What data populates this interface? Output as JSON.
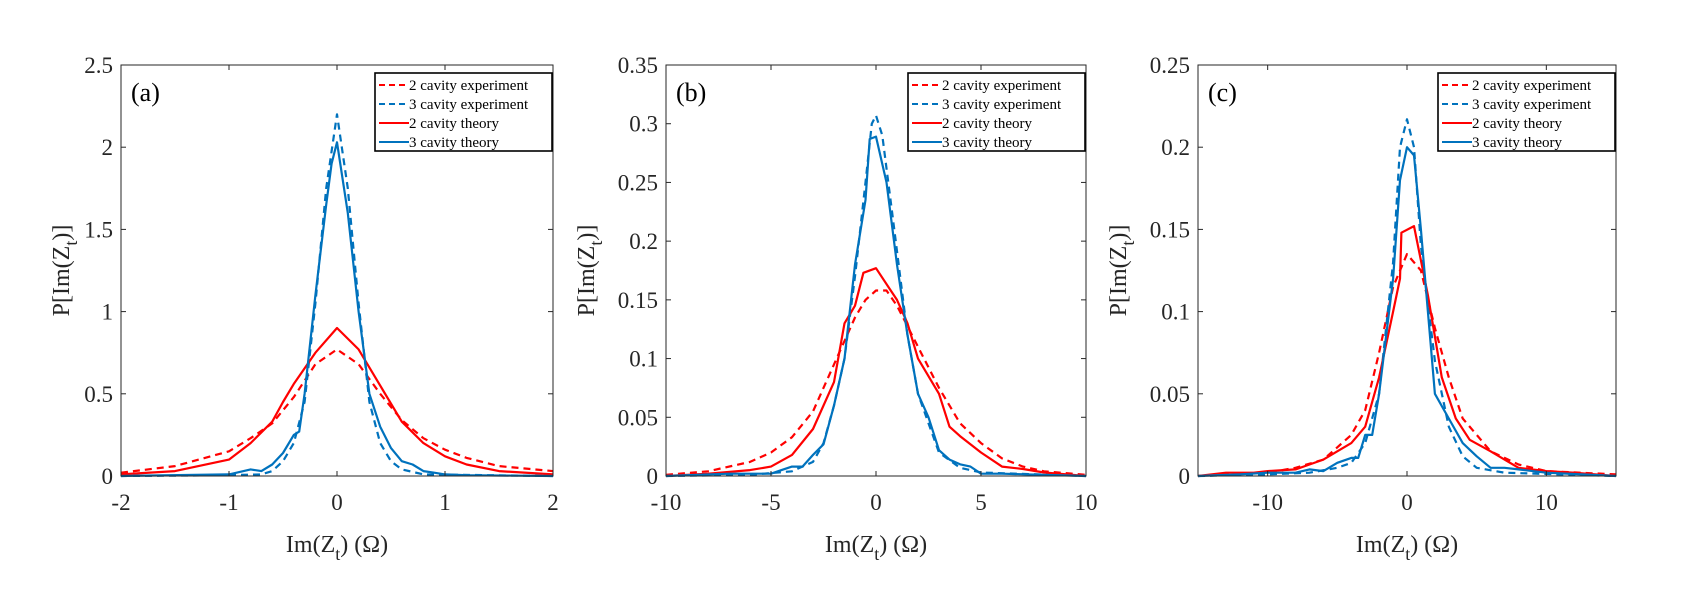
{
  "chart_data": [
    {
      "type": "line",
      "panel_label": "(a)",
      "xlabel": {
        "main": "Im(Z",
        "sub": "t",
        "tail": ") (Ω)"
      },
      "ylabel": {
        "main": "P[Im(Z",
        "sub": "t",
        "tail": ")]"
      },
      "xlim": [
        -2,
        2
      ],
      "ylim": [
        0,
        2.5
      ],
      "xticks": [
        -2,
        -1,
        0,
        1,
        2
      ],
      "yticks": [
        0,
        0.5,
        1,
        1.5,
        2,
        2.5
      ],
      "legend_position": "top-right",
      "series": [
        {
          "name": "2 cavity experiment",
          "color": "#ff0000",
          "style": "dashed",
          "x": [
            -2,
            -1.5,
            -1,
            -0.8,
            -0.6,
            -0.4,
            -0.2,
            0,
            0.2,
            0.4,
            0.6,
            0.8,
            1,
            1.2,
            1.5,
            2
          ],
          "y": [
            0.02,
            0.06,
            0.15,
            0.23,
            0.32,
            0.48,
            0.68,
            0.77,
            0.68,
            0.5,
            0.34,
            0.23,
            0.16,
            0.11,
            0.06,
            0.03
          ]
        },
        {
          "name": "3 cavity experiment",
          "color": "#0072bd",
          "style": "dashed",
          "x": [
            -2,
            -1,
            -0.7,
            -0.6,
            -0.5,
            -0.4,
            -0.3,
            -0.2,
            -0.1,
            0,
            0.1,
            0.2,
            0.3,
            0.4,
            0.5,
            0.6,
            0.8,
            2
          ],
          "y": [
            0,
            0.005,
            0.01,
            0.03,
            0.09,
            0.2,
            0.45,
            1.05,
            1.75,
            2.2,
            1.75,
            1.05,
            0.45,
            0.2,
            0.09,
            0.04,
            0.01,
            0
          ]
        },
        {
          "name": "2 cavity theory",
          "color": "#ff0000",
          "style": "solid",
          "x": [
            -2,
            -1.5,
            -1,
            -0.8,
            -0.6,
            -0.5,
            -0.4,
            -0.2,
            0,
            0.2,
            0.4,
            0.6,
            0.8,
            1,
            1.2,
            1.5,
            2
          ],
          "y": [
            0.01,
            0.03,
            0.1,
            0.2,
            0.33,
            0.45,
            0.56,
            0.75,
            0.9,
            0.77,
            0.55,
            0.33,
            0.2,
            0.12,
            0.07,
            0.03,
            0.01
          ]
        },
        {
          "name": "3 cavity theory",
          "color": "#0072bd",
          "style": "solid",
          "x": [
            -2,
            -1,
            -0.8,
            -0.7,
            -0.6,
            -0.5,
            -0.4,
            -0.35,
            -0.3,
            -0.2,
            -0.1,
            -0.05,
            0,
            0.1,
            0.2,
            0.3,
            0.4,
            0.5,
            0.6,
            0.7,
            0.8,
            0.9,
            1,
            1.2,
            2
          ],
          "y": [
            0,
            0.01,
            0.04,
            0.03,
            0.07,
            0.14,
            0.25,
            0.27,
            0.5,
            1.1,
            1.65,
            1.9,
            2.03,
            1.6,
            1.0,
            0.5,
            0.3,
            0.17,
            0.09,
            0.07,
            0.03,
            0.02,
            0.01,
            0.005,
            0
          ]
        }
      ]
    },
    {
      "type": "line",
      "panel_label": "(b)",
      "xlabel": {
        "main": "Im(Z",
        "sub": "t",
        "tail": ") (Ω)"
      },
      "ylabel": {
        "main": "P[Im(Z",
        "sub": "t",
        "tail": ")]"
      },
      "xlim": [
        -10,
        10
      ],
      "ylim": [
        0,
        0.35
      ],
      "xticks": [
        -10,
        -5,
        0,
        5,
        10
      ],
      "yticks": [
        0,
        0.05,
        0.1,
        0.15,
        0.2,
        0.25,
        0.3,
        0.35
      ],
      "legend_position": "top-right",
      "series": [
        {
          "name": "2 cavity experiment",
          "color": "#ff0000",
          "style": "dashed",
          "x": [
            -10,
            -8,
            -6,
            -5,
            -4,
            -3,
            -2,
            -1,
            -0.5,
            0,
            0.5,
            1,
            2,
            3,
            4,
            5,
            6,
            7,
            8,
            10
          ],
          "y": [
            0.001,
            0.004,
            0.012,
            0.02,
            0.033,
            0.055,
            0.095,
            0.135,
            0.15,
            0.158,
            0.158,
            0.145,
            0.11,
            0.075,
            0.045,
            0.028,
            0.015,
            0.008,
            0.004,
            0.001
          ]
        },
        {
          "name": "3 cavity experiment",
          "color": "#0072bd",
          "style": "dashed",
          "x": [
            -10,
            -6,
            -4,
            -3,
            -2.5,
            -2,
            -1.5,
            -1,
            -0.5,
            -0.2,
            0,
            0.3,
            0.8,
            1.5,
            2,
            2.5,
            3,
            4,
            5,
            10
          ],
          "y": [
            0,
            0.001,
            0.004,
            0.012,
            0.028,
            0.06,
            0.1,
            0.17,
            0.25,
            0.3,
            0.307,
            0.29,
            0.22,
            0.12,
            0.07,
            0.045,
            0.02,
            0.007,
            0.003,
            0
          ]
        },
        {
          "name": "2 cavity theory",
          "color": "#ff0000",
          "style": "solid",
          "x": [
            -10,
            -8,
            -6,
            -5,
            -4,
            -3,
            -2,
            -1.5,
            -1,
            -0.6,
            0,
            1,
            1.5,
            2,
            2.5,
            3,
            3.5,
            4,
            5,
            6,
            7,
            8,
            10
          ],
          "y": [
            0,
            0.002,
            0.005,
            0.008,
            0.018,
            0.04,
            0.08,
            0.13,
            0.145,
            0.173,
            0.177,
            0.15,
            0.13,
            0.1,
            0.085,
            0.07,
            0.042,
            0.034,
            0.02,
            0.008,
            0.006,
            0.003,
            0
          ]
        },
        {
          "name": "3 cavity theory",
          "color": "#0072bd",
          "style": "solid",
          "x": [
            -10,
            -7,
            -5,
            -4.5,
            -4,
            -3.5,
            -3,
            -2.5,
            -2,
            -1.5,
            -1,
            -0.5,
            -0.3,
            0,
            0.5,
            1,
            1.5,
            2,
            2.5,
            3,
            3.5,
            4,
            4.5,
            5,
            6,
            8,
            10
          ],
          "y": [
            0,
            0.002,
            0.002,
            0.005,
            0.008,
            0.008,
            0.018,
            0.027,
            0.06,
            0.1,
            0.18,
            0.235,
            0.287,
            0.289,
            0.25,
            0.18,
            0.12,
            0.07,
            0.05,
            0.022,
            0.014,
            0.01,
            0.008,
            0.002,
            0.002,
            0.001,
            0
          ]
        }
      ]
    },
    {
      "type": "line",
      "panel_label": "(c)",
      "xlabel": {
        "main": "Im(Z",
        "sub": "t",
        "tail": ") (Ω)"
      },
      "ylabel": {
        "main": "P[Im(Z",
        "sub": "t",
        "tail": ")]"
      },
      "xlim": [
        -15,
        15
      ],
      "ylim": [
        0,
        0.25
      ],
      "xticks": [
        -10,
        0,
        10
      ],
      "yticks": [
        0,
        0.05,
        0.1,
        0.15,
        0.2,
        0.25
      ],
      "legend_position": "top-right",
      "series": [
        {
          "name": "2 cavity experiment",
          "color": "#ff0000",
          "style": "dashed",
          "x": [
            -15,
            -10,
            -8,
            -6,
            -4,
            -3,
            -2,
            -1,
            0,
            1,
            2,
            3,
            4,
            5,
            6,
            8,
            10,
            15
          ],
          "y": [
            0,
            0.002,
            0.005,
            0.01,
            0.025,
            0.04,
            0.075,
            0.115,
            0.135,
            0.125,
            0.09,
            0.06,
            0.035,
            0.025,
            0.015,
            0.007,
            0.003,
            0.001
          ]
        },
        {
          "name": "3 cavity experiment",
          "color": "#0072bd",
          "style": "dashed",
          "x": [
            -15,
            -10,
            -7,
            -5,
            -4,
            -3,
            -2,
            -1,
            -0.5,
            0,
            0.5,
            1,
            2,
            3,
            4,
            5,
            7,
            15
          ],
          "y": [
            0,
            0.001,
            0.002,
            0.005,
            0.008,
            0.02,
            0.05,
            0.13,
            0.2,
            0.217,
            0.2,
            0.14,
            0.07,
            0.03,
            0.012,
            0.005,
            0.002,
            0
          ]
        },
        {
          "name": "2 cavity theory",
          "color": "#ff0000",
          "style": "solid",
          "x": [
            -15,
            -13,
            -11,
            -10,
            -8,
            -7,
            -6,
            -5,
            -4,
            -3,
            -2,
            -1,
            -0.5,
            -0.4,
            0.5,
            1.5,
            2.5,
            3.5,
            4.5,
            6,
            7,
            8,
            10,
            12,
            15
          ],
          "y": [
            0,
            0.002,
            0.002,
            0.003,
            0.004,
            0.007,
            0.01,
            0.015,
            0.02,
            0.03,
            0.06,
            0.1,
            0.12,
            0.148,
            0.152,
            0.11,
            0.06,
            0.035,
            0.022,
            0.015,
            0.01,
            0.005,
            0.003,
            0.002,
            0
          ]
        },
        {
          "name": "3 cavity theory",
          "color": "#0072bd",
          "style": "solid",
          "x": [
            -15,
            -12,
            -10,
            -8,
            -7,
            -6,
            -5,
            -4,
            -3.5,
            -3,
            -2.5,
            -2,
            -1,
            -0.5,
            0,
            0.5,
            1,
            1.5,
            2,
            3,
            4,
            5,
            6,
            7,
            8,
            10,
            15
          ],
          "y": [
            0,
            0.001,
            0.002,
            0.002,
            0.004,
            0.003,
            0.008,
            0.011,
            0.011,
            0.025,
            0.025,
            0.05,
            0.12,
            0.18,
            0.2,
            0.195,
            0.15,
            0.1,
            0.05,
            0.035,
            0.02,
            0.012,
            0.005,
            0.005,
            0.004,
            0.002,
            0
          ]
        }
      ]
    }
  ]
}
